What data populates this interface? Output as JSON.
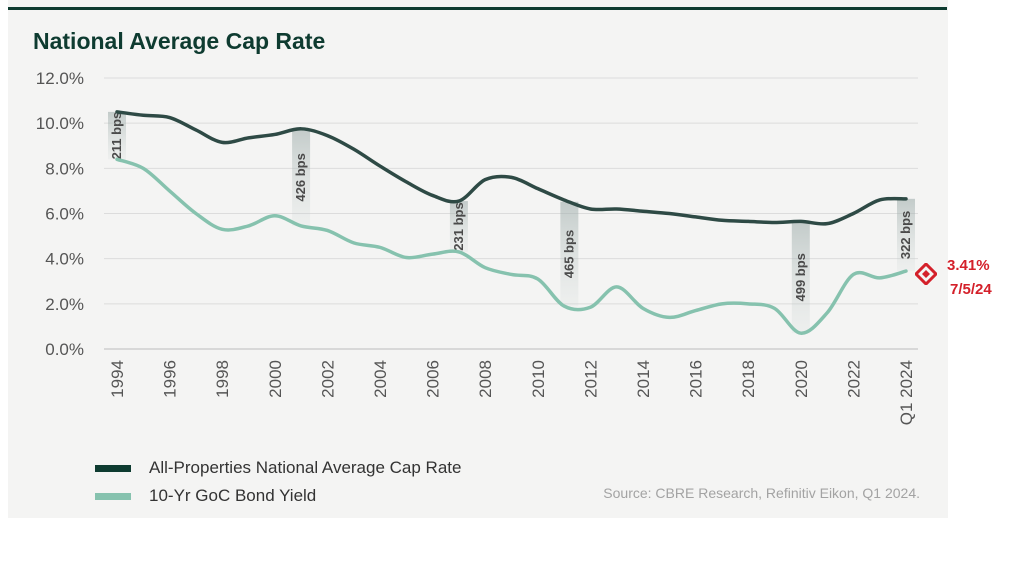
{
  "title": "National Average Cap Rate",
  "source": "Source: CBRE Research, Refinitiv Eikon, Q1 2024.",
  "annotation": {
    "value": "3.41%",
    "date": "7/5/24",
    "color": "#d4202a",
    "icon": "diamond-marker-icon"
  },
  "legend": [
    {
      "label": "All-Properties National Average Cap Rate",
      "color": "#2e4a45"
    },
    {
      "label": "10-Yr GoC Bond Yield",
      "color": "#86c2ae"
    }
  ],
  "chart_data": {
    "type": "line",
    "title": "National Average Cap Rate",
    "ylim": [
      0,
      12
    ],
    "xlim": [
      1994,
      2024
    ],
    "yticks": [
      "0.0%",
      "2.0%",
      "4.0%",
      "6.0%",
      "8.0%",
      "10.0%",
      "12.0%"
    ],
    "xticks": [
      {
        "x": 1994,
        "label": "1994"
      },
      {
        "x": 1996,
        "label": "1996"
      },
      {
        "x": 1998,
        "label": "1998"
      },
      {
        "x": 2000,
        "label": "2000"
      },
      {
        "x": 2002,
        "label": "2002"
      },
      {
        "x": 2004,
        "label": "2004"
      },
      {
        "x": 2006,
        "label": "2006"
      },
      {
        "x": 2008,
        "label": "2008"
      },
      {
        "x": 2010,
        "label": "2010"
      },
      {
        "x": 2012,
        "label": "2012"
      },
      {
        "x": 2014,
        "label": "2014"
      },
      {
        "x": 2016,
        "label": "2016"
      },
      {
        "x": 2018,
        "label": "2018"
      },
      {
        "x": 2020,
        "label": "2020"
      },
      {
        "x": 2022,
        "label": "2022"
      },
      {
        "x": 2024,
        "label": "Q1 2024"
      }
    ],
    "grid": true,
    "legend_position": "bottom-left",
    "series": [
      {
        "name": "All-Properties National Average Cap Rate",
        "color": "#2e4a45",
        "points": [
          [
            1994,
            10.5
          ],
          [
            1995,
            10.35
          ],
          [
            1996,
            10.25
          ],
          [
            1997,
            9.7
          ],
          [
            1998,
            9.15
          ],
          [
            1999,
            9.35
          ],
          [
            2000,
            9.5
          ],
          [
            2001,
            9.75
          ],
          [
            2002,
            9.45
          ],
          [
            2003,
            8.85
          ],
          [
            2004,
            8.1
          ],
          [
            2005,
            7.4
          ],
          [
            2006,
            6.8
          ],
          [
            2007,
            6.55
          ],
          [
            2008,
            7.5
          ],
          [
            2009,
            7.6
          ],
          [
            2010,
            7.1
          ],
          [
            2011,
            6.6
          ],
          [
            2012,
            6.2
          ],
          [
            2013,
            6.2
          ],
          [
            2014,
            6.1
          ],
          [
            2015,
            6.0
          ],
          [
            2016,
            5.85
          ],
          [
            2017,
            5.7
          ],
          [
            2018,
            5.65
          ],
          [
            2019,
            5.6
          ],
          [
            2020,
            5.65
          ],
          [
            2021,
            5.55
          ],
          [
            2022,
            6.0
          ],
          [
            2023,
            6.6
          ],
          [
            2024,
            6.65
          ]
        ]
      },
      {
        "name": "10-Yr GoC Bond Yield",
        "color": "#86c2ae",
        "points": [
          [
            1994,
            8.4
          ],
          [
            1995,
            8.0
          ],
          [
            1996,
            7.0
          ],
          [
            1997,
            6.0
          ],
          [
            1998,
            5.3
          ],
          [
            1999,
            5.45
          ],
          [
            2000,
            5.9
          ],
          [
            2001,
            5.45
          ],
          [
            2002,
            5.25
          ],
          [
            2003,
            4.7
          ],
          [
            2004,
            4.5
          ],
          [
            2005,
            4.05
          ],
          [
            2006,
            4.2
          ],
          [
            2007,
            4.3
          ],
          [
            2008,
            3.6
          ],
          [
            2009,
            3.3
          ],
          [
            2010,
            3.1
          ],
          [
            2011,
            1.9
          ],
          [
            2012,
            1.85
          ],
          [
            2013,
            2.75
          ],
          [
            2014,
            1.8
          ],
          [
            2015,
            1.4
          ],
          [
            2016,
            1.7
          ],
          [
            2017,
            2.0
          ],
          [
            2018,
            2.0
          ],
          [
            2019,
            1.8
          ],
          [
            2020,
            0.7
          ],
          [
            2021,
            1.6
          ],
          [
            2022,
            3.3
          ],
          [
            2023,
            3.15
          ],
          [
            2024,
            3.45
          ]
        ]
      }
    ],
    "spreads": [
      {
        "x": 1994,
        "label": "211 bps"
      },
      {
        "x": 2001,
        "label": "426 bps"
      },
      {
        "x": 2007,
        "label": "231 bps"
      },
      {
        "x": 2011.2,
        "label": "465 bps"
      },
      {
        "x": 2020,
        "label": "499 bps"
      },
      {
        "x": 2024,
        "label": "322 bps"
      }
    ]
  }
}
